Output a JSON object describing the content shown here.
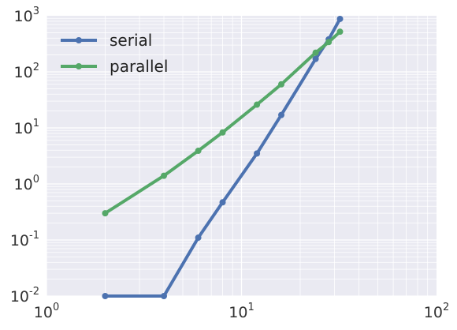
{
  "chart_data": {
    "type": "line",
    "title": "",
    "xlabel": "",
    "ylabel": "",
    "xscale": "log",
    "yscale": "log",
    "xlim": [
      1,
      100
    ],
    "ylim": [
      0.01,
      1000
    ],
    "x_ticks": [
      {
        "base": "10",
        "exp": "0"
      },
      {
        "base": "10",
        "exp": "1"
      },
      {
        "base": "10",
        "exp": "2"
      }
    ],
    "y_ticks": [
      {
        "base": "10",
        "exp": "-2"
      },
      {
        "base": "10",
        "exp": "-1"
      },
      {
        "base": "10",
        "exp": "0"
      },
      {
        "base": "10",
        "exp": "1"
      },
      {
        "base": "10",
        "exp": "2"
      },
      {
        "base": "10",
        "exp": "3"
      }
    ],
    "grid": true,
    "legend_position": "upper-left",
    "series": [
      {
        "name": "serial",
        "color": "#4c72b0",
        "x": [
          2,
          4,
          6,
          8,
          12,
          16,
          24,
          28,
          32
        ],
        "y": [
          0.01,
          0.01,
          0.11,
          0.47,
          3.5,
          17,
          170,
          380,
          880
        ]
      },
      {
        "name": "parallel",
        "color": "#55a868",
        "x": [
          2,
          4,
          6,
          8,
          12,
          16,
          24,
          28,
          32
        ],
        "y": [
          0.3,
          1.4,
          3.9,
          8.3,
          26,
          60,
          220,
          340,
          520
        ]
      }
    ]
  }
}
